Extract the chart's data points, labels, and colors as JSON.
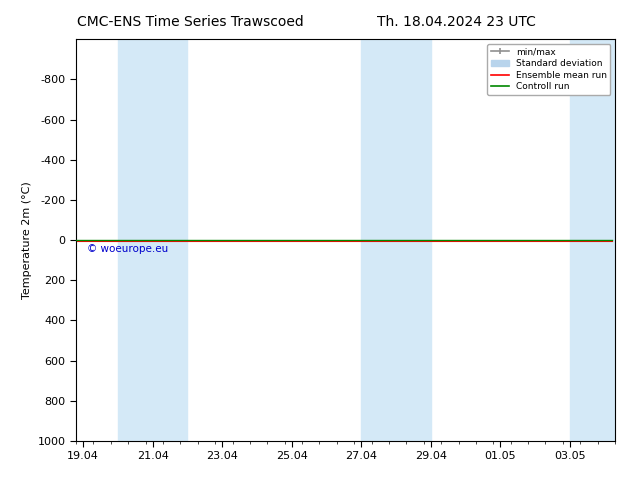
{
  "title_left": "CMC-ENS Time Series Trawscoed",
  "title_right": "Th. 18.04.2024 23 UTC",
  "ylabel": "Temperature 2m (°C)",
  "ylim_top": -1000,
  "ylim_bottom": 1000,
  "yticks": [
    -800,
    -600,
    -400,
    -200,
    0,
    200,
    400,
    600,
    800
  ],
  "xtick_labels": [
    "19.04",
    "21.04",
    "23.04",
    "25.04",
    "27.04",
    "29.04",
    "01.05",
    "03.05"
  ],
  "xtick_positions": [
    0,
    2,
    4,
    6,
    8,
    10,
    12,
    14
  ],
  "xlim": [
    -0.2,
    15.2
  ],
  "shaded_bands": [
    [
      0.8,
      1.6
    ],
    [
      1.6,
      3.2
    ],
    [
      7.8,
      8.6
    ],
    [
      8.6,
      10.2
    ],
    [
      13.8,
      15.2
    ]
  ],
  "band_colors": [
    "#ddeef8",
    "#d0e8f8",
    "#ddeef8",
    "#d0e8f8",
    "#d0e8f8"
  ],
  "line_y": 0,
  "ensemble_mean_color": "#ff0000",
  "control_run_color": "#008800",
  "min_max_color": "#909090",
  "std_dev_color": "#b8d4ec",
  "background_color": "#ffffff",
  "watermark": "© woeurope.eu",
  "watermark_color": "#0000cc",
  "legend_labels": [
    "min/max",
    "Standard deviation",
    "Ensemble mean run",
    "Controll run"
  ],
  "title_fontsize": 10,
  "axis_fontsize": 8,
  "tick_fontsize": 8
}
